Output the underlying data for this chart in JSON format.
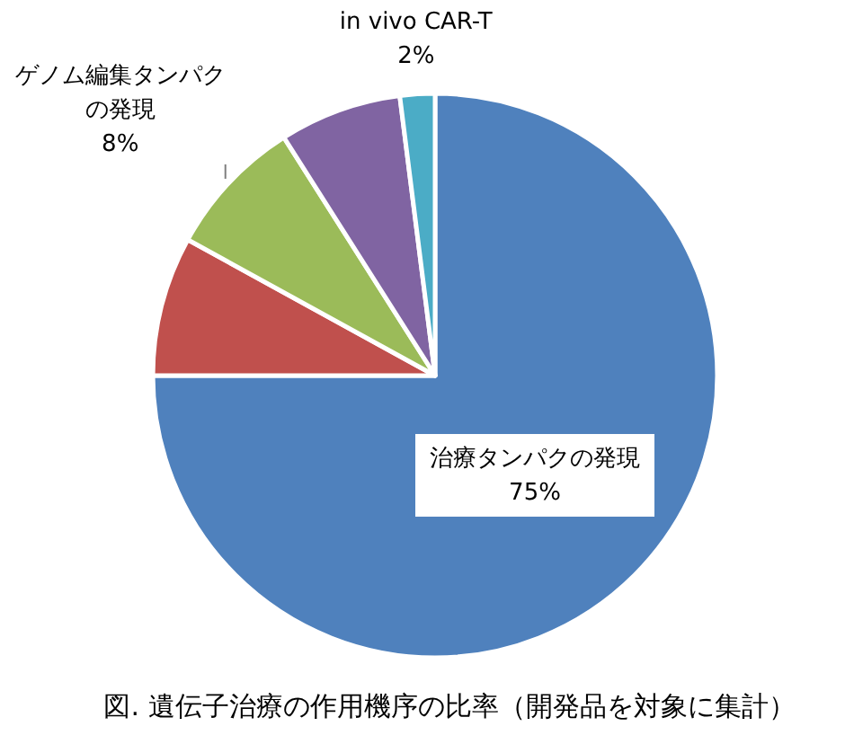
{
  "chart_data": {
    "type": "pie",
    "title": "図. 遺伝子治療の作用機序の比率（開発品を対象に集計）",
    "categories": [
      "治療タンパクの発現",
      null,
      "ゲノム編集タンパクの発現",
      null,
      "in vivo CAR-T"
    ],
    "values": [
      75,
      8,
      8,
      7,
      2
    ],
    "colors": [
      "#4f81bd",
      "#c0504d",
      "#9bbb59",
      "#8064a2",
      "#4bacc6"
    ],
    "value_labels": [
      "75%",
      null,
      "8%",
      null,
      "2%"
    ]
  }
}
